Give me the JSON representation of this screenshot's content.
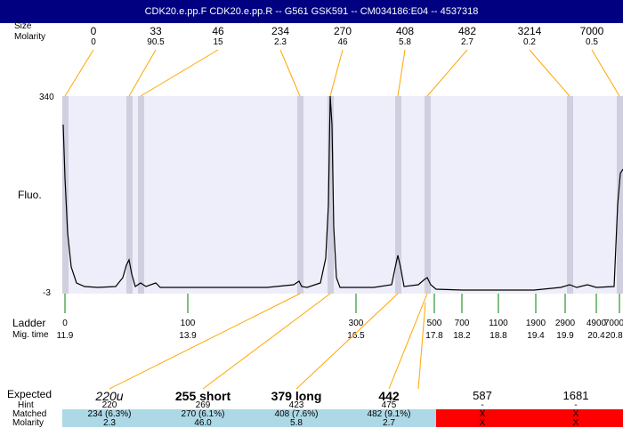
{
  "title": "CDK20.e.pp.F  CDK20.e.pp.R -- G561 GSK591 -- CM034186:E04 -- 4537318",
  "row_labels": {
    "top_size": "Size",
    "top_molarity": "Molarity",
    "fluo": "Fluo.",
    "y_max": "340",
    "y_min": "-3",
    "ladder": "Ladder",
    "mig_time": "Mig. time",
    "expected": "Expected",
    "hint": "Hint",
    "matched": "Matched",
    "molarity": "Molarity"
  },
  "top_peaks": [
    {
      "size": "0",
      "molarity": "0"
    },
    {
      "size": "33",
      "molarity": "90.5"
    },
    {
      "size": "46",
      "molarity": "15"
    },
    {
      "size": "234",
      "molarity": "2.3"
    },
    {
      "size": "270",
      "molarity": "46"
    },
    {
      "size": "408",
      "molarity": "5.8"
    },
    {
      "size": "482",
      "molarity": "2.7"
    },
    {
      "size": "3214",
      "molarity": "0.2"
    },
    {
      "size": "7000",
      "molarity": "0.5"
    }
  ],
  "ladder": [
    {
      "size": "0",
      "time": "11.9"
    },
    {
      "size": "100",
      "time": "13.9"
    },
    {
      "size": "300",
      "time": "16.5"
    },
    {
      "size": "500",
      "time": "17.8"
    },
    {
      "size": "700",
      "time": "18.2"
    },
    {
      "size": "1100",
      "time": "18.8"
    },
    {
      "size": "1900",
      "time": "19.4"
    },
    {
      "size": "2900",
      "time": "19.9"
    },
    {
      "size": "4900",
      "time": "20.4"
    },
    {
      "size": "7000",
      "time": "20.8"
    }
  ],
  "expected": [
    {
      "label": "220u",
      "style": "italic",
      "hint": "220",
      "matched": "234 (6.3%)",
      "molarity": "2.3"
    },
    {
      "label": "255 short",
      "style": "bold",
      "hint": "269",
      "matched": "270 (6.1%)",
      "molarity": "46.0"
    },
    {
      "label": "379 long",
      "style": "bold",
      "hint": "423",
      "matched": "408 (7.6%)",
      "molarity": "5.8"
    },
    {
      "label": "442",
      "style": "bold",
      "hint": "475",
      "matched": "482 (9.1%)",
      "molarity": "2.7"
    },
    {
      "label": "587",
      "style": "plain",
      "hint": "-",
      "matched": "X",
      "molarity": "X"
    },
    {
      "label": "1681",
      "style": "plain",
      "hint": "-",
      "matched": "X",
      "molarity": "X"
    }
  ],
  "colors": {
    "title_bg": "#000080",
    "plot_bg": "#eeeefa",
    "peak_band": "#cfcfe0",
    "orange_line": "#ffa500",
    "ladder_tick": "#008000",
    "matched_band": "#add8e6",
    "unmatched_band": "#ff0000"
  }
}
